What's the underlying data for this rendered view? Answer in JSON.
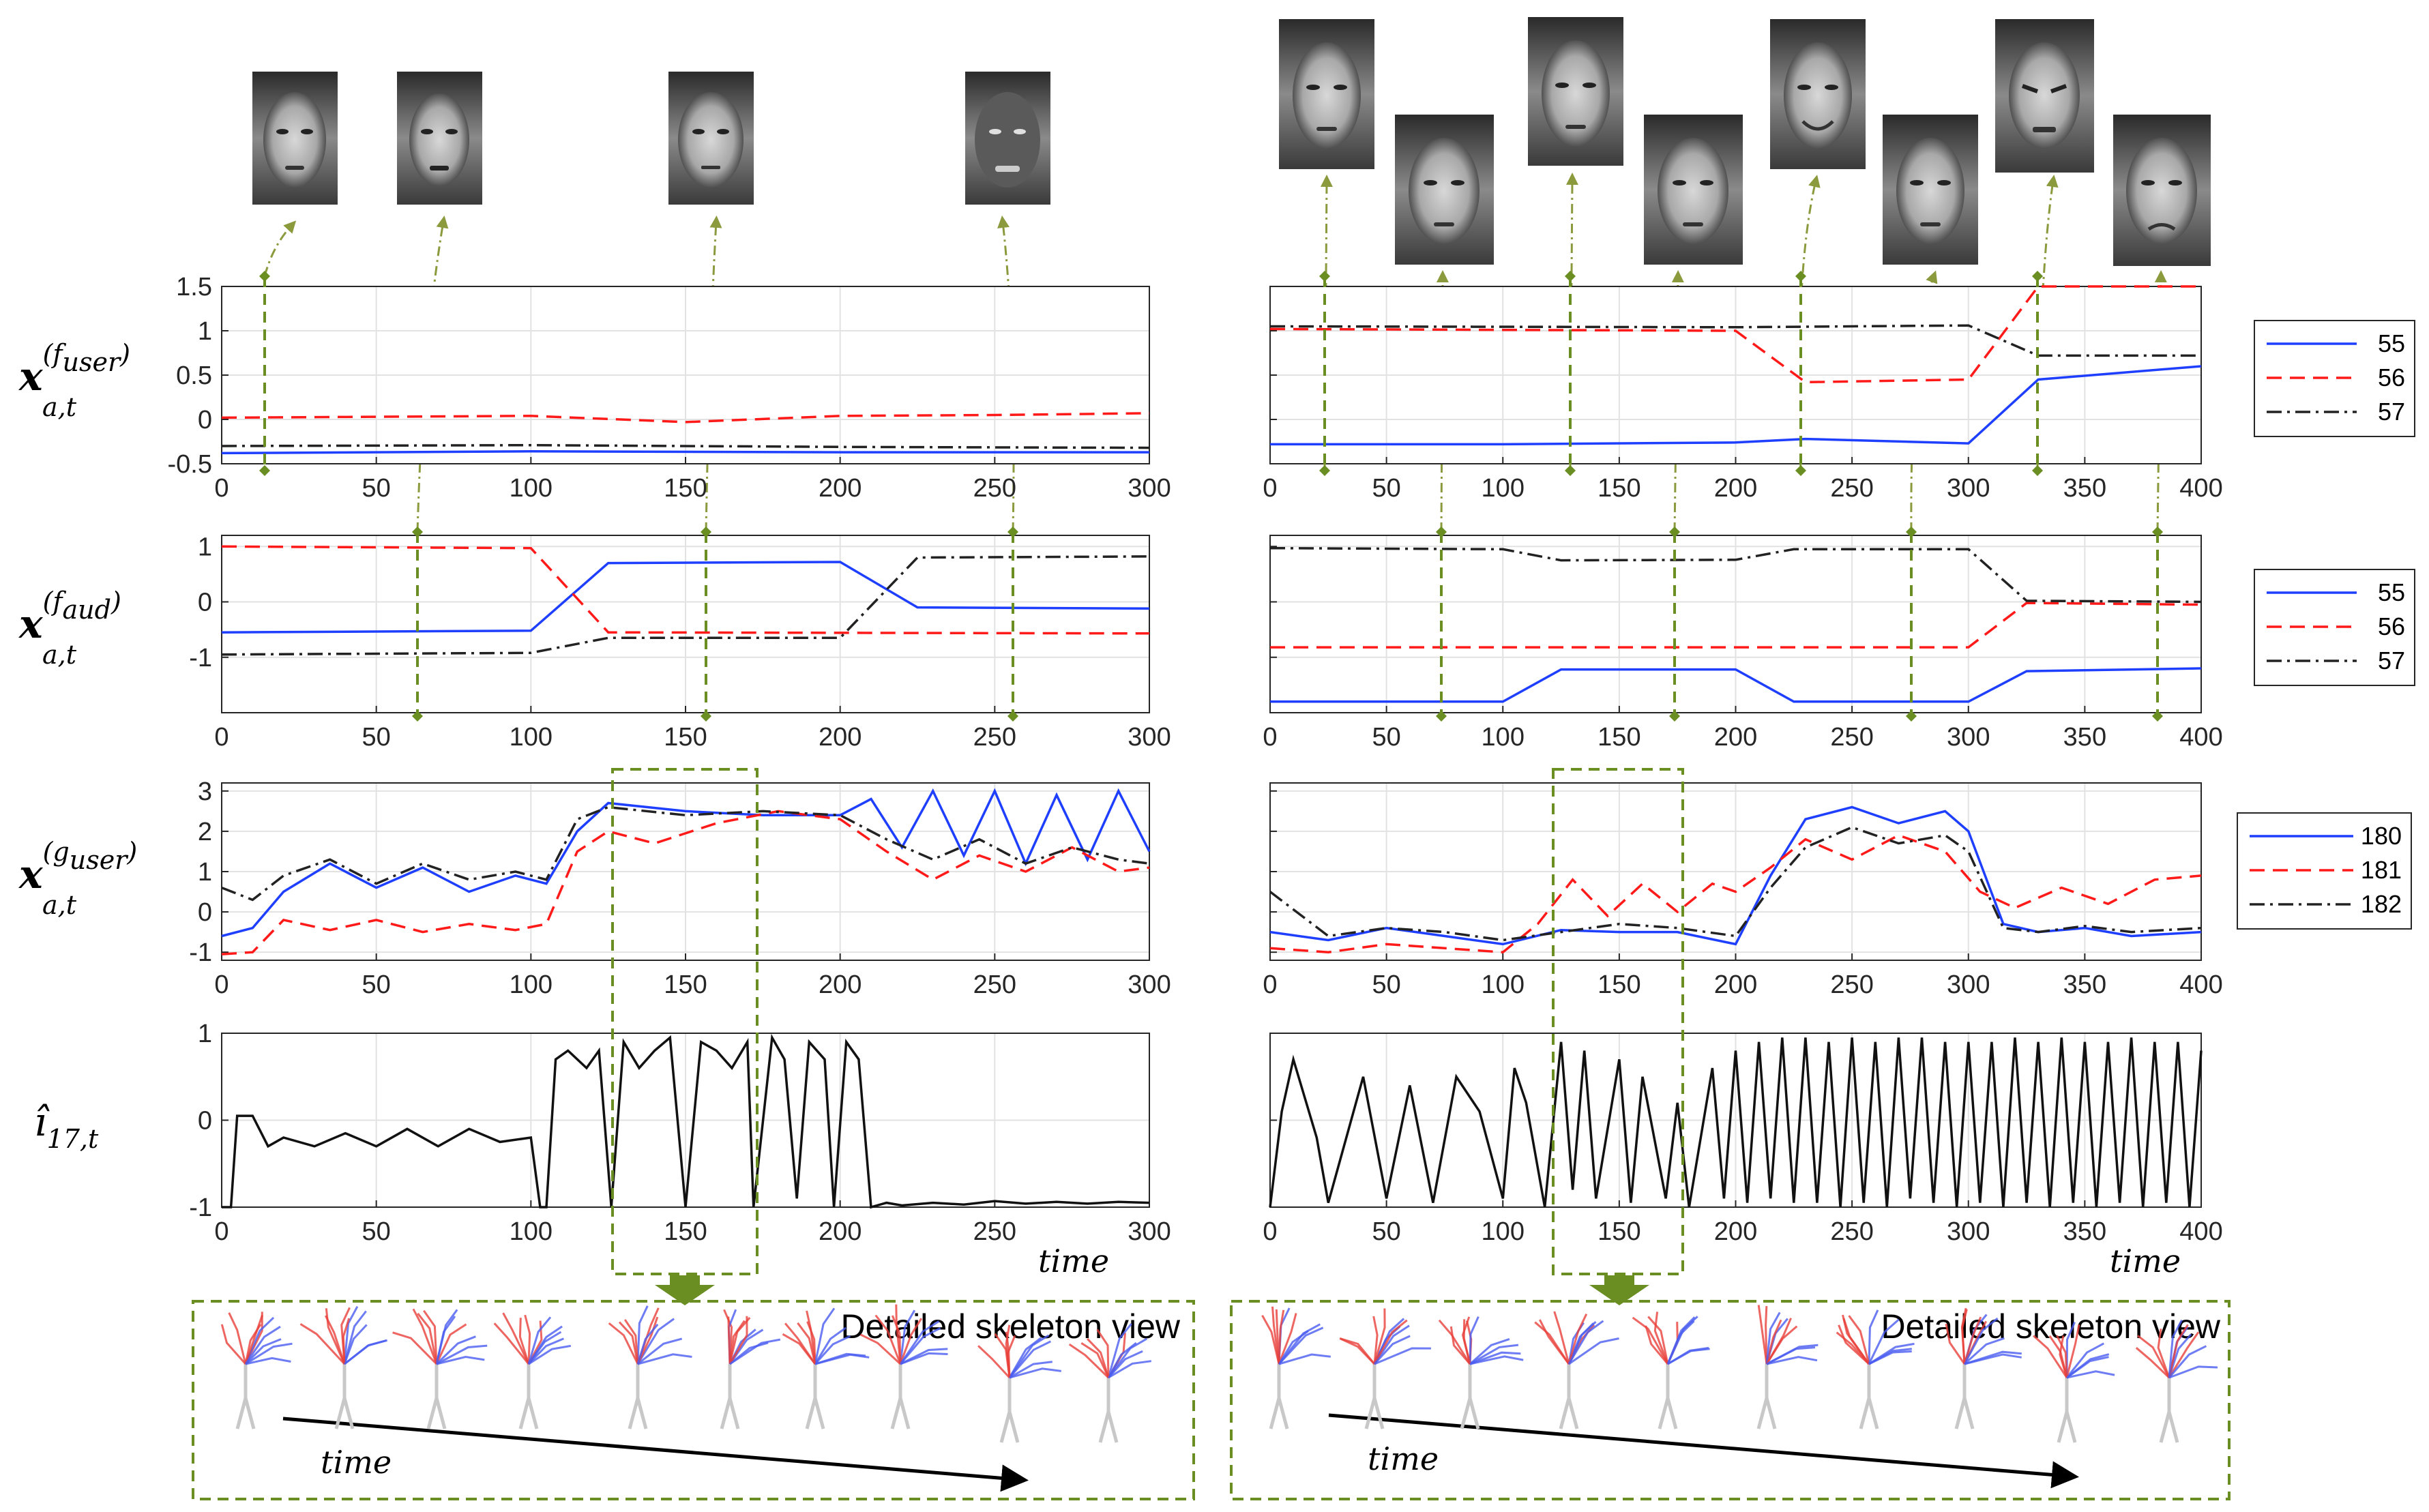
{
  "colors": {
    "series_blue": "#1f3fff",
    "series_red": "#ff1a1a",
    "series_black": "#222222",
    "accent_green": "#6b8e23",
    "arrow_olive": "#8a9a3c"
  },
  "labels": {
    "time_label": "time",
    "skeleton_title": "Detailed skeleton view",
    "row_labels": [
      {
        "main": "x",
        "sup": "(f",
        "supsub": "user",
        "supend": ")",
        "sub": "a,t"
      },
      {
        "main": "x",
        "sup": "(f",
        "supsub": "aud",
        "supend": ")",
        "sub": "a,t"
      },
      {
        "main": "x",
        "sup": "(g",
        "supsub": "user",
        "supend": ")",
        "sub": "a,t"
      },
      {
        "main": "î",
        "sup": "",
        "supsub": "",
        "supend": "",
        "sub": "17,t"
      }
    ]
  },
  "icons": [
    "face-photo-icon",
    "skeleton-pose-icon",
    "down-arrow-icon"
  ],
  "chart_data": [
    {
      "type": "line",
      "id": "L1",
      "title": "",
      "xlim": [
        0,
        300
      ],
      "ylim": [
        -0.5,
        1.5
      ],
      "xticks": [
        0,
        50,
        100,
        150,
        200,
        250,
        300
      ],
      "yticks": [
        -0.5,
        0,
        0.5,
        1,
        1.5
      ],
      "ytick_labels": [
        "-0.5",
        "0",
        "0.5",
        "1",
        "1.5"
      ],
      "series": [
        {
          "name": "55",
          "color": "#1f3fff",
          "dash": "solid",
          "x": [
            0,
            100,
            200,
            300
          ],
          "y": [
            -0.38,
            -0.36,
            -0.37,
            -0.37
          ]
        },
        {
          "name": "56",
          "color": "#ff1a1a",
          "dash": "dashed",
          "x": [
            0,
            50,
            100,
            150,
            200,
            250,
            300
          ],
          "y": [
            0.02,
            0.03,
            0.04,
            -0.03,
            0.04,
            0.05,
            0.07
          ]
        },
        {
          "name": "57",
          "color": "#222222",
          "dash": "dashdot",
          "x": [
            0,
            100,
            200,
            300
          ],
          "y": [
            -0.3,
            -0.29,
            -0.31,
            -0.32
          ]
        }
      ]
    },
    {
      "type": "line",
      "id": "R1",
      "xlim": [
        0,
        400
      ],
      "ylim": [
        -0.5,
        1.5
      ],
      "xticks": [
        0,
        50,
        100,
        150,
        200,
        250,
        300,
        350,
        400
      ],
      "yticks": [
        -0.5,
        0,
        0.5,
        1,
        1.5
      ],
      "ytick_labels": [
        "",
        "",
        "",
        "",
        ""
      ],
      "series": [
        {
          "name": "55",
          "color": "#1f3fff",
          "dash": "solid",
          "x": [
            0,
            100,
            200,
            230,
            300,
            330,
            400
          ],
          "y": [
            -0.28,
            -0.28,
            -0.26,
            -0.22,
            -0.27,
            0.45,
            0.6
          ]
        },
        {
          "name": "56",
          "color": "#ff1a1a",
          "dash": "dashed",
          "x": [
            0,
            200,
            230,
            300,
            330,
            400
          ],
          "y": [
            1.02,
            1.0,
            0.42,
            0.45,
            1.5,
            1.5
          ]
        },
        {
          "name": "57",
          "color": "#222222",
          "dash": "dashdot",
          "x": [
            0,
            200,
            300,
            330,
            400
          ],
          "y": [
            1.05,
            1.04,
            1.06,
            0.72,
            0.72
          ]
        }
      ],
      "legend": {
        "entries": [
          "55",
          "56",
          "57"
        ],
        "placement": "right"
      }
    },
    {
      "type": "line",
      "id": "L2",
      "xlim": [
        0,
        300
      ],
      "ylim": [
        -2,
        1.2
      ],
      "xticks": [
        0,
        50,
        100,
        150,
        200,
        250,
        300
      ],
      "yticks": [
        -1,
        0,
        1
      ],
      "ytick_labels": [
        "-1",
        "0",
        "1"
      ],
      "series": [
        {
          "name": "55",
          "color": "#1f3fff",
          "dash": "solid",
          "x": [
            0,
            100,
            125,
            200,
            225,
            300
          ],
          "y": [
            -0.55,
            -0.52,
            0.7,
            0.72,
            -0.1,
            -0.12
          ]
        },
        {
          "name": "56",
          "color": "#ff1a1a",
          "dash": "dashed",
          "x": [
            0,
            100,
            125,
            300
          ],
          "y": [
            1.0,
            0.97,
            -0.55,
            -0.57
          ]
        },
        {
          "name": "57",
          "color": "#222222",
          "dash": "dashdot",
          "x": [
            0,
            100,
            125,
            200,
            225,
            300
          ],
          "y": [
            -0.95,
            -0.92,
            -0.65,
            -0.65,
            0.8,
            0.82
          ]
        }
      ]
    },
    {
      "type": "line",
      "id": "R2",
      "xlim": [
        0,
        400
      ],
      "ylim": [
        -2,
        1.2
      ],
      "xticks": [
        0,
        50,
        100,
        150,
        200,
        250,
        300,
        350,
        400
      ],
      "yticks": [
        -1,
        0,
        1
      ],
      "ytick_labels": [
        "",
        "",
        ""
      ],
      "series": [
        {
          "name": "55",
          "color": "#1f3fff",
          "dash": "solid",
          "x": [
            0,
            100,
            125,
            200,
            225,
            300,
            325,
            400
          ],
          "y": [
            -1.8,
            -1.8,
            -1.22,
            -1.22,
            -1.8,
            -1.8,
            -1.25,
            -1.2
          ]
        },
        {
          "name": "56",
          "color": "#ff1a1a",
          "dash": "dashed",
          "x": [
            0,
            300,
            325,
            400
          ],
          "y": [
            -0.82,
            -0.82,
            -0.02,
            -0.05
          ]
        },
        {
          "name": "57",
          "color": "#222222",
          "dash": "dashdot",
          "x": [
            0,
            100,
            125,
            200,
            225,
            300,
            325,
            400
          ],
          "y": [
            0.97,
            0.95,
            0.75,
            0.76,
            0.95,
            0.95,
            0.02,
            0.0
          ]
        }
      ],
      "legend": {
        "entries": [
          "55",
          "56",
          "57"
        ],
        "placement": "right"
      }
    },
    {
      "type": "line",
      "id": "L3",
      "xlim": [
        0,
        300
      ],
      "ylim": [
        -1.2,
        3.2
      ],
      "xticks": [
        0,
        50,
        100,
        150,
        200,
        250,
        300
      ],
      "yticks": [
        -1,
        0,
        1,
        2,
        3
      ],
      "ytick_labels": [
        "-1",
        "0",
        "1",
        "2",
        "3"
      ],
      "series": [
        {
          "name": "180",
          "color": "#1f3fff",
          "dash": "solid",
          "x": [
            0,
            10,
            20,
            35,
            50,
            65,
            80,
            95,
            105,
            115,
            125,
            150,
            175,
            200,
            210,
            220,
            230,
            240,
            250,
            260,
            270,
            280,
            290,
            300
          ],
          "y": [
            -0.6,
            -0.4,
            0.5,
            1.2,
            0.6,
            1.1,
            0.5,
            0.9,
            0.7,
            2.0,
            2.7,
            2.5,
            2.4,
            2.4,
            2.8,
            1.6,
            3.0,
            1.4,
            3.0,
            1.2,
            2.9,
            1.3,
            3.0,
            1.5
          ]
        },
        {
          "name": "181",
          "color": "#ff1a1a",
          "dash": "dashed",
          "x": [
            0,
            10,
            20,
            35,
            50,
            65,
            80,
            95,
            105,
            115,
            125,
            140,
            160,
            180,
            200,
            215,
            230,
            245,
            260,
            275,
            290,
            300
          ],
          "y": [
            -1.05,
            -1.0,
            -0.2,
            -0.45,
            -0.2,
            -0.5,
            -0.3,
            -0.45,
            -0.3,
            1.5,
            2.0,
            1.7,
            2.2,
            2.5,
            2.3,
            1.5,
            0.8,
            1.4,
            1.0,
            1.6,
            1.0,
            1.1
          ]
        },
        {
          "name": "182",
          "color": "#222222",
          "dash": "dashdot",
          "x": [
            0,
            10,
            20,
            35,
            50,
            65,
            80,
            95,
            105,
            115,
            125,
            150,
            175,
            200,
            215,
            230,
            245,
            260,
            275,
            290,
            300
          ],
          "y": [
            0.6,
            0.3,
            0.9,
            1.3,
            0.7,
            1.2,
            0.8,
            1.0,
            0.8,
            2.3,
            2.6,
            2.4,
            2.5,
            2.4,
            1.8,
            1.3,
            1.8,
            1.2,
            1.6,
            1.3,
            1.2
          ]
        }
      ]
    },
    {
      "type": "line",
      "id": "R3",
      "xlim": [
        0,
        400
      ],
      "ylim": [
        -1.2,
        3.2
      ],
      "xticks": [
        0,
        50,
        100,
        150,
        200,
        250,
        300,
        350,
        400
      ],
      "yticks": [
        -1,
        0,
        1,
        2,
        3
      ],
      "ytick_labels": [
        "",
        "",
        "",
        "",
        ""
      ],
      "series": [
        {
          "name": "180",
          "color": "#1f3fff",
          "dash": "solid",
          "x": [
            0,
            25,
            50,
            75,
            100,
            125,
            150,
            175,
            200,
            215,
            230,
            250,
            270,
            290,
            300,
            315,
            330,
            350,
            370,
            400
          ],
          "y": [
            -0.5,
            -0.7,
            -0.4,
            -0.6,
            -0.8,
            -0.45,
            -0.5,
            -0.5,
            -0.8,
            0.9,
            2.3,
            2.6,
            2.2,
            2.5,
            2.0,
            -0.3,
            -0.5,
            -0.4,
            -0.6,
            -0.5
          ]
        },
        {
          "name": "181",
          "color": "#ff1a1a",
          "dash": "dashed",
          "x": [
            0,
            25,
            50,
            75,
            100,
            115,
            130,
            145,
            160,
            175,
            190,
            200,
            215,
            230,
            250,
            270,
            290,
            305,
            320,
            340,
            360,
            380,
            400
          ],
          "y": [
            -0.9,
            -1.0,
            -0.8,
            -0.9,
            -1.0,
            -0.3,
            0.8,
            -0.1,
            0.7,
            0.0,
            0.7,
            0.5,
            1.1,
            1.8,
            1.3,
            1.9,
            1.5,
            0.5,
            0.1,
            0.6,
            0.2,
            0.8,
            0.9
          ]
        },
        {
          "name": "182",
          "color": "#222222",
          "dash": "dashdot",
          "x": [
            0,
            25,
            50,
            75,
            100,
            125,
            150,
            175,
            200,
            215,
            230,
            250,
            270,
            290,
            300,
            315,
            330,
            350,
            370,
            400
          ],
          "y": [
            0.5,
            -0.6,
            -0.4,
            -0.5,
            -0.7,
            -0.5,
            -0.3,
            -0.4,
            -0.6,
            0.6,
            1.6,
            2.1,
            1.7,
            1.9,
            1.5,
            -0.4,
            -0.5,
            -0.35,
            -0.5,
            -0.4
          ]
        }
      ],
      "legend": {
        "entries": [
          "180",
          "181",
          "182"
        ],
        "placement": "right"
      }
    },
    {
      "type": "line",
      "id": "L4",
      "xlim": [
        0,
        300
      ],
      "ylim": [
        -1,
        1
      ],
      "xticks": [
        0,
        50,
        100,
        150,
        200,
        250,
        300
      ],
      "yticks": [
        -1,
        0,
        1
      ],
      "ytick_labels": [
        "-1",
        "0",
        "1"
      ],
      "series": [
        {
          "name": "î17,t",
          "color": "#111111",
          "dash": "solid",
          "x": [
            0,
            3,
            5,
            10,
            15,
            20,
            30,
            40,
            50,
            60,
            70,
            80,
            90,
            100,
            103,
            105,
            108,
            112,
            118,
            122,
            126,
            130,
            135,
            140,
            145,
            150,
            155,
            160,
            165,
            170,
            172,
            178,
            182,
            186,
            190,
            195,
            198,
            202,
            206,
            210,
            215,
            220,
            230,
            240,
            250,
            260,
            270,
            280,
            290,
            300
          ],
          "y": [
            -1,
            -1,
            0.05,
            0.05,
            -0.3,
            -0.2,
            -0.3,
            -0.15,
            -0.3,
            -0.1,
            -0.3,
            -0.1,
            -0.25,
            -0.2,
            -1,
            -1,
            0.7,
            0.8,
            0.6,
            0.8,
            -1,
            0.9,
            0.6,
            0.8,
            0.95,
            -1,
            0.9,
            0.8,
            0.6,
            0.9,
            -1,
            0.95,
            0.7,
            -0.9,
            0.9,
            0.7,
            -1,
            0.9,
            0.7,
            -1,
            -0.95,
            -0.98,
            -0.95,
            -0.97,
            -0.93,
            -0.96,
            -0.94,
            -0.96,
            -0.94,
            -0.95
          ]
        }
      ]
    },
    {
      "type": "line",
      "id": "R4",
      "xlim": [
        0,
        400
      ],
      "ylim": [
        -1,
        1
      ],
      "xticks": [
        0,
        50,
        100,
        150,
        200,
        250,
        300,
        350,
        400
      ],
      "yticks": [
        -1,
        0,
        1
      ],
      "ytick_labels": [
        "",
        "",
        ""
      ],
      "series": [
        {
          "name": "î17,t",
          "color": "#111111",
          "dash": "solid",
          "x": [
            0,
            5,
            10,
            20,
            25,
            40,
            50,
            60,
            70,
            80,
            90,
            100,
            105,
            110,
            118,
            125,
            130,
            135,
            140,
            150,
            155,
            160,
            170,
            175,
            180,
            190,
            195,
            200,
            205,
            210,
            215,
            220,
            225,
            230,
            235,
            240,
            245,
            250,
            255,
            260,
            265,
            270,
            275,
            280,
            285,
            290,
            295,
            300,
            305,
            310,
            315,
            320,
            325,
            330,
            335,
            340,
            345,
            350,
            355,
            360,
            365,
            370,
            375,
            380,
            385,
            390,
            395,
            400
          ],
          "y": [
            -1,
            0.1,
            0.7,
            -0.2,
            -0.95,
            0.5,
            -0.9,
            0.4,
            -0.95,
            0.5,
            0.1,
            -0.9,
            0.6,
            0.2,
            -1,
            0.9,
            -0.8,
            0.8,
            -0.9,
            0.7,
            -0.95,
            0.5,
            -0.9,
            0.2,
            -1,
            0.6,
            -0.9,
            0.8,
            -0.95,
            0.9,
            -0.9,
            0.95,
            -0.95,
            0.95,
            -0.95,
            0.9,
            -1,
            0.95,
            -0.95,
            0.9,
            -1,
            0.95,
            -0.9,
            0.95,
            -0.95,
            0.9,
            -1,
            0.9,
            -0.95,
            0.9,
            -1,
            0.95,
            -0.95,
            0.9,
            -1,
            0.95,
            -0.95,
            0.9,
            -1,
            0.9,
            -0.95,
            0.95,
            -1,
            0.9,
            -0.95,
            0.9,
            -1,
            0.8
          ]
        }
      ]
    }
  ]
}
